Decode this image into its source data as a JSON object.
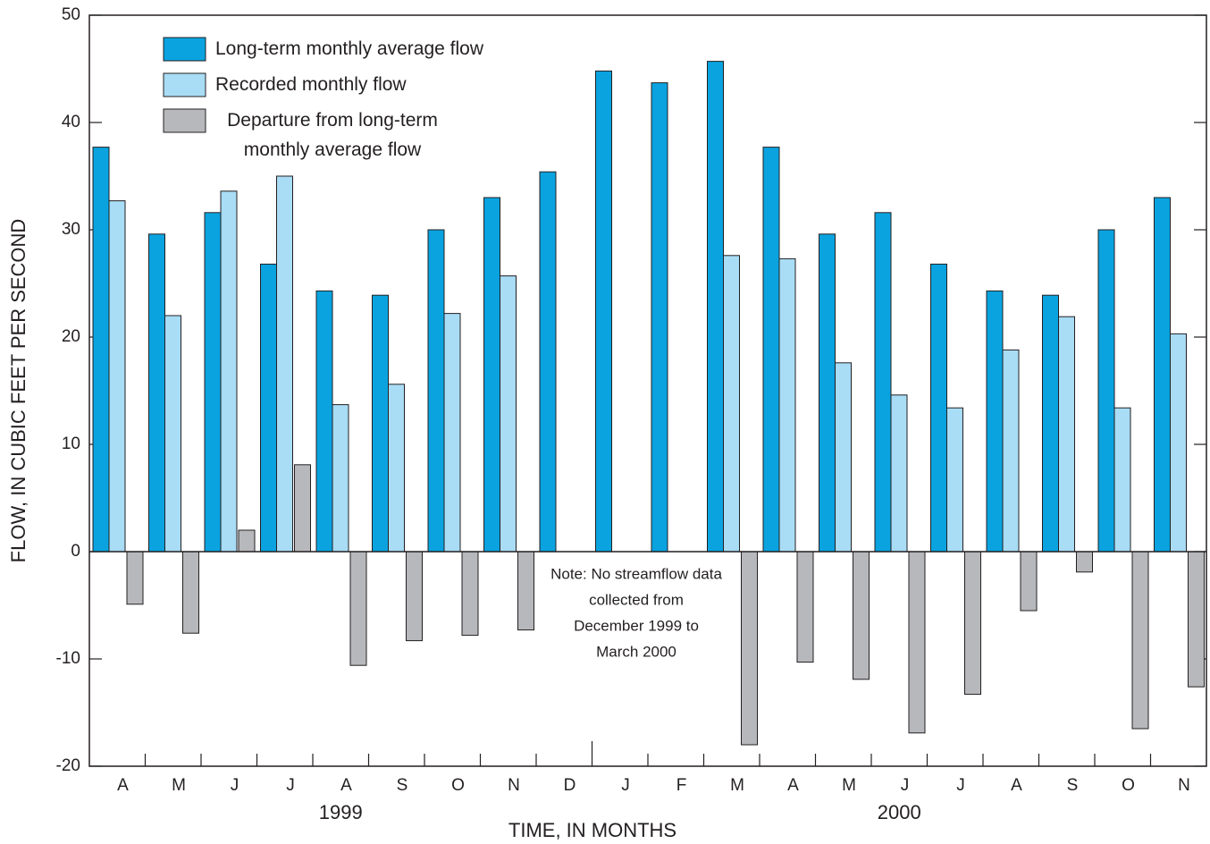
{
  "chart_data": {
    "type": "bar",
    "categories": [
      "A",
      "M",
      "J",
      "J",
      "A",
      "S",
      "O",
      "N",
      "D",
      "J",
      "F",
      "M",
      "A",
      "M",
      "J",
      "J",
      "A",
      "S",
      "O",
      "N"
    ],
    "groups": [
      {
        "label": "1999",
        "count": 9
      },
      {
        "label": "2000",
        "count": 11
      }
    ],
    "series": [
      {
        "name": "Long-term monthly average flow",
        "color": "#0aa3e0",
        "values": [
          37.7,
          29.6,
          31.6,
          26.8,
          24.3,
          23.9,
          30.0,
          33.0,
          35.4,
          44.8,
          43.7,
          45.7,
          37.7,
          29.6,
          31.6,
          26.8,
          24.3,
          23.9,
          30.0,
          33.0
        ]
      },
      {
        "name": "Recorded monthly flow",
        "color": "#a9dcf5",
        "values": [
          32.7,
          22.0,
          33.6,
          35.0,
          13.7,
          15.6,
          22.2,
          25.7,
          null,
          null,
          null,
          27.6,
          27.3,
          17.6,
          14.6,
          13.4,
          18.8,
          21.9,
          13.4,
          20.3
        ]
      },
      {
        "name": "Departure from long-term monthly average flow",
        "color": "#b7b8bc",
        "values": [
          -4.9,
          -7.6,
          2.0,
          8.1,
          -10.6,
          -8.3,
          -7.8,
          -7.3,
          null,
          null,
          null,
          -18.0,
          -10.3,
          -11.9,
          -16.9,
          -13.3,
          -5.5,
          -1.9,
          -16.5,
          -12.6
        ]
      }
    ],
    "ylim": [
      -20,
      50
    ],
    "yticks": [
      -20,
      -10,
      0,
      10,
      20,
      30,
      40,
      50
    ],
    "ylabel": "FLOW, IN CUBIC FEET PER SECOND",
    "xlabel": "TIME, IN MONTHS",
    "annotation": [
      "Note: No streamflow data",
      "collected from",
      "December 1999 to",
      "March 2000"
    ],
    "legend": "upper left",
    "grid": false
  }
}
